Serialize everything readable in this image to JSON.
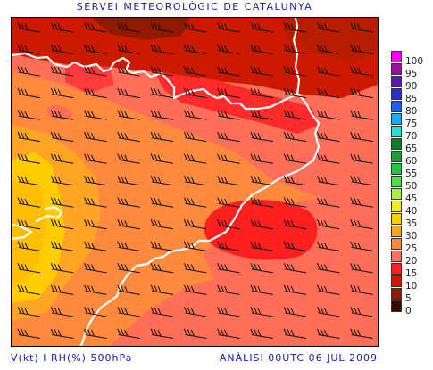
{
  "title": "SERVEI METEOROLÒGIC DE CATALUNYA",
  "footer": {
    "left": "V(kt) I RH(%) 500hPa",
    "right": "ANÀLISI 00UTC 06 JUL 2009"
  },
  "legend": [
    {
      "label": "100",
      "color": "#ff00ff"
    },
    {
      "label": "95",
      "color": "#9b0fa3"
    },
    {
      "label": "90",
      "color": "#5b19b4"
    },
    {
      "label": "85",
      "color": "#2b2ed0"
    },
    {
      "label": "80",
      "color": "#1d62e6"
    },
    {
      "label": "75",
      "color": "#1faaf5"
    },
    {
      "label": "70",
      "color": "#28e0d6"
    },
    {
      "label": "65",
      "color": "#0f7f26"
    },
    {
      "label": "60",
      "color": "#17a02f"
    },
    {
      "label": "55",
      "color": "#27c33a"
    },
    {
      "label": "50",
      "color": "#4fe040"
    },
    {
      "label": "45",
      "color": "#a7f03f"
    },
    {
      "label": "40",
      "color": "#f6ec1a"
    },
    {
      "label": "35",
      "color": "#ffcc00"
    },
    {
      "label": "30",
      "color": "#ffa526"
    },
    {
      "label": "25",
      "color": "#ff8a3e"
    },
    {
      "label": "20",
      "color": "#ff6e58"
    },
    {
      "label": "15",
      "color": "#ff1f1f"
    },
    {
      "label": "10",
      "color": "#cc1a00"
    },
    {
      "label": "5",
      "color": "#8f1a00"
    },
    {
      "label": "0",
      "color": "#3a0a00"
    }
  ]
}
